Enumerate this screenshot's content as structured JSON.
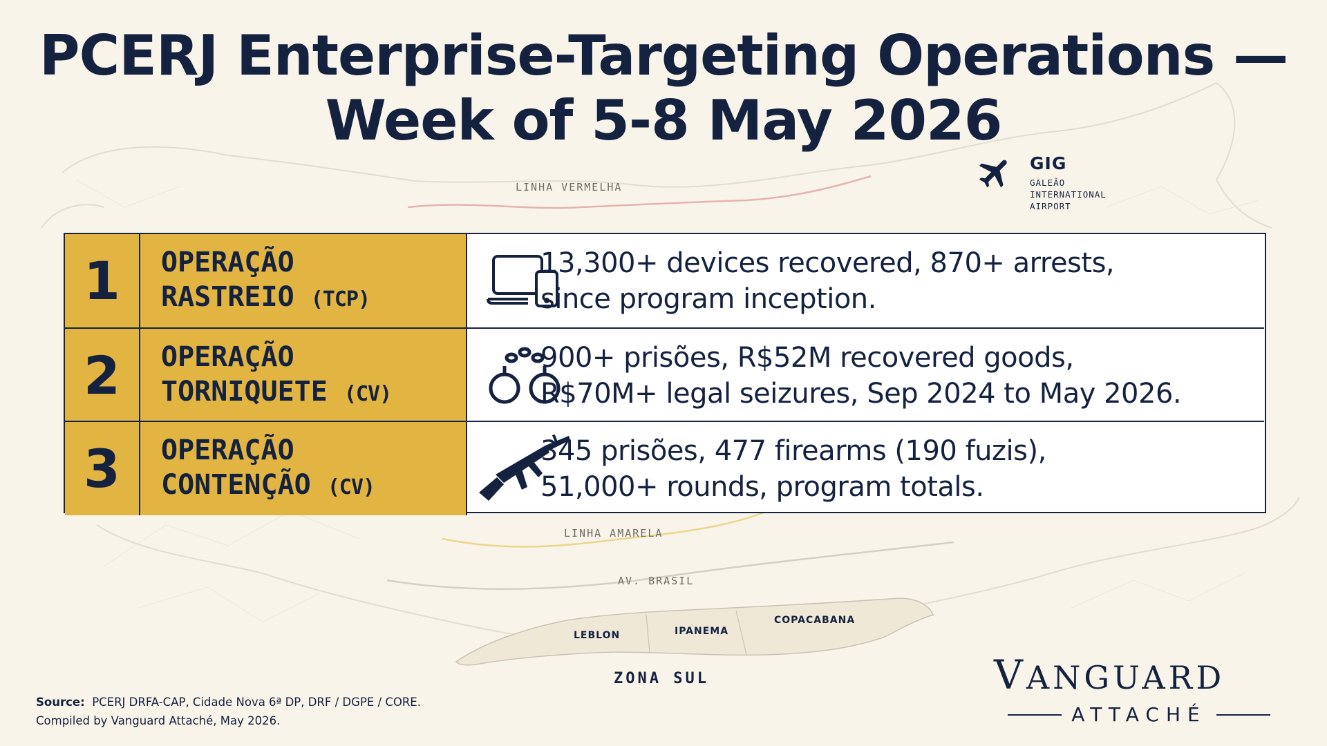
{
  "title": {
    "line1": "PCERJ Enterprise-Targeting Operations —",
    "line2": "Week of 5-8 May 2026"
  },
  "map": {
    "road_labels": {
      "linha_vermelha": "LINHA VERMELHA",
      "linha_amarela": "LINHA AMARELA",
      "av_brasil": "AV. BRASIL"
    },
    "neighborhoods": [
      "LEBLON",
      "IPANEMA",
      "COPACABANA"
    ],
    "region": "ZONA SUL",
    "airport": {
      "code": "GIG",
      "name_lines": [
        "GALEÃO",
        "INTERNATIONAL",
        "AIRPORT"
      ],
      "icon": "airplane-icon"
    },
    "colors": {
      "linha_vermelha": "#e3b3ae",
      "linha_amarela": "#ecd58c",
      "av_brasil": "#d4d0c7"
    }
  },
  "operations": [
    {
      "number": "1",
      "name_line1": "OPERAÇÃO",
      "name_line2": "RASTREIO",
      "faction": "(TCP)",
      "icon": "devices-icon",
      "stat_line1": "13,300+ devices recovered, 870+ arrests,",
      "stat_line2": "since program inception."
    },
    {
      "number": "2",
      "name_line1": "OPERAÇÃO",
      "name_line2": "TORNIQUETE",
      "faction": "(CV)",
      "icon": "handcuffs-icon",
      "stat_line1": "900+ prisões, R$52M recovered goods,",
      "stat_line2": "R$70M+ legal seizures, Sep 2024 to May 2026."
    },
    {
      "number": "3",
      "name_line1": "OPERAÇÃO",
      "name_line2": "CONTENÇÃO",
      "faction": "(CV)",
      "icon": "rifle-icon",
      "stat_line1": "345 prisões, 477 firearms (190 fuzis),",
      "stat_line2": "51,000+ rounds, program totals."
    }
  ],
  "source": {
    "label": "Source:",
    "text": "PCERJ DRFA-CAP, Cidade Nova 6ª DP, DRF / DGPE / CORE.",
    "compiled": "Compiled by Vanguard Attaché, May 2026."
  },
  "brand": {
    "first": "V",
    "rest": "ANGUARD",
    "sub": "ATTACHÉ"
  },
  "colors": {
    "navy": "#14213f",
    "gold": "#e2b441",
    "background": "#f8f4e9"
  }
}
